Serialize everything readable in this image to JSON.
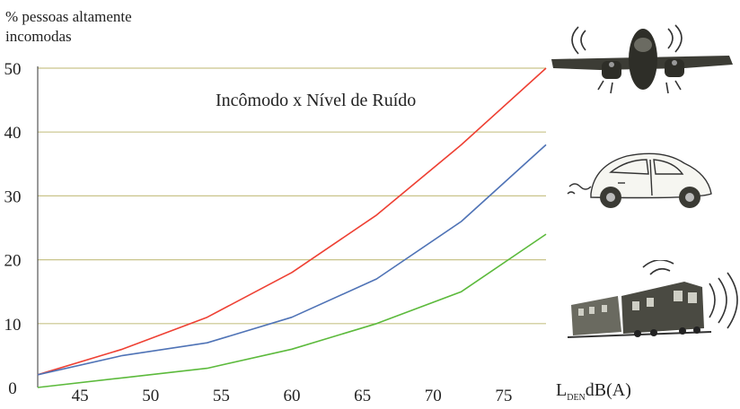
{
  "chart_data": {
    "type": "line",
    "title": "Incômodo x Nível de Ruído",
    "ylabel_line1": "% pessoas altamente",
    "ylabel_line2": "incomodas",
    "xlabel_base": "L",
    "xlabel_sub": "DEN",
    "xlabel_unit": "dB(A)",
    "xlim": [
      42,
      78
    ],
    "ylim": [
      0,
      50
    ],
    "x_ticks": [
      "45",
      "50",
      "55",
      "60",
      "65",
      "70",
      "75"
    ],
    "y_ticks": [
      "0",
      "10",
      "20",
      "30",
      "40",
      "50"
    ],
    "grid": true,
    "series": [
      {
        "icon": "airplane",
        "color": "#ee4033",
        "x": [
          42,
          48,
          54,
          60,
          66,
          72,
          78
        ],
        "y": [
          2,
          6,
          11,
          18,
          27,
          38,
          50
        ]
      },
      {
        "icon": "car",
        "color": "#4f73b6",
        "x": [
          42,
          48,
          54,
          60,
          66,
          72,
          78
        ],
        "y": [
          2,
          5,
          7,
          11,
          17,
          26,
          38
        ]
      },
      {
        "icon": "train",
        "color": "#5cba3c",
        "x": [
          42,
          48,
          54,
          60,
          66,
          72,
          78
        ],
        "y": [
          0,
          1.5,
          3,
          6,
          10,
          15,
          24
        ]
      }
    ]
  }
}
